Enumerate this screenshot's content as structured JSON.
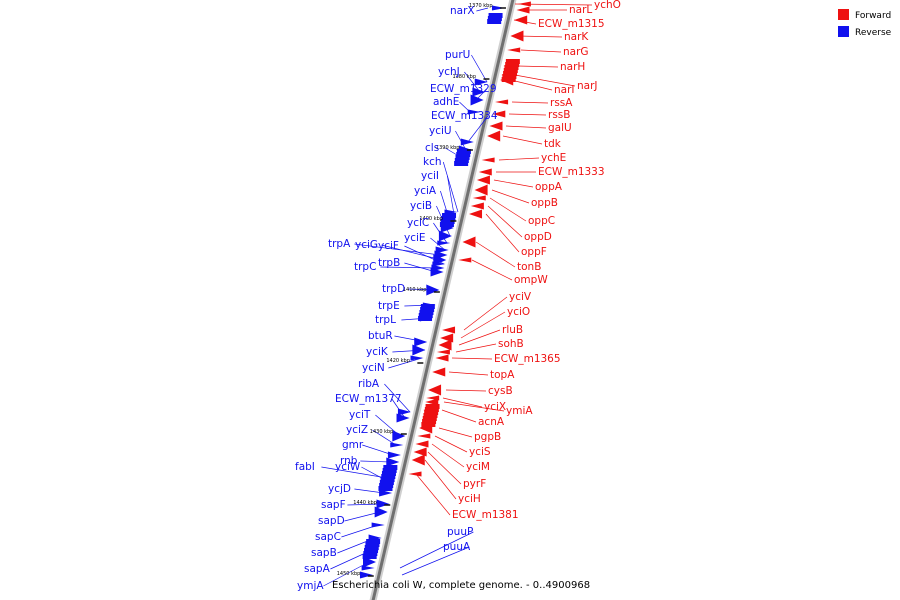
{
  "caption": "Escherichia coli W, complete genome. - 0..4900968",
  "legend": [
    {
      "label": "Forward",
      "color": "#ee1111"
    },
    {
      "label": "Reverse",
      "color": "#1111ee"
    }
  ],
  "ticks": [
    "1370 kbp",
    "1380 kbp",
    "1390 kbp",
    "1400 kbp",
    "1410 kbp",
    "1420 kbp",
    "1430 kbp",
    "1440 kbp",
    "1450 kbp"
  ],
  "reverse_genes": [
    "narX",
    "purU",
    "ychJ",
    "ECW_m1329",
    "adhE",
    "ECW_m1334",
    "yciU",
    "cls",
    "kch",
    "yciI",
    "yciA",
    "yciB",
    "yciC",
    "yciE",
    "trpA",
    "yciG",
    "yciF",
    "trpC",
    "trpB",
    "trpD",
    "trpE",
    "trpL",
    "btuR",
    "yciK",
    "yciN",
    "ribA",
    "ECW_m1377",
    "yciT",
    "yciZ",
    "gmr",
    "rnb",
    "fabI",
    "yciW",
    "ycjD",
    "sapF",
    "sapD",
    "sapC",
    "sapB",
    "sapA",
    "ymjA",
    "puuP",
    "puuA"
  ],
  "forward_genes": [
    "ychO",
    "narL",
    "ECW_m1315",
    "narK",
    "narG",
    "narH",
    "narJ",
    "narI",
    "rssA",
    "rssB",
    "galU",
    "tdk",
    "ychE",
    "ECW_m1333",
    "oppA",
    "oppB",
    "oppC",
    "oppD",
    "oppF",
    "tonB",
    "ompW",
    "yciV",
    "yciO",
    "rluB",
    "sohB",
    "ECW_m1365",
    "topA",
    "cysB",
    "yciX",
    "ymiA",
    "acnA",
    "pgpB",
    "yciS",
    "yciM",
    "pyrF",
    "yciH",
    "ECW_m1381"
  ]
}
